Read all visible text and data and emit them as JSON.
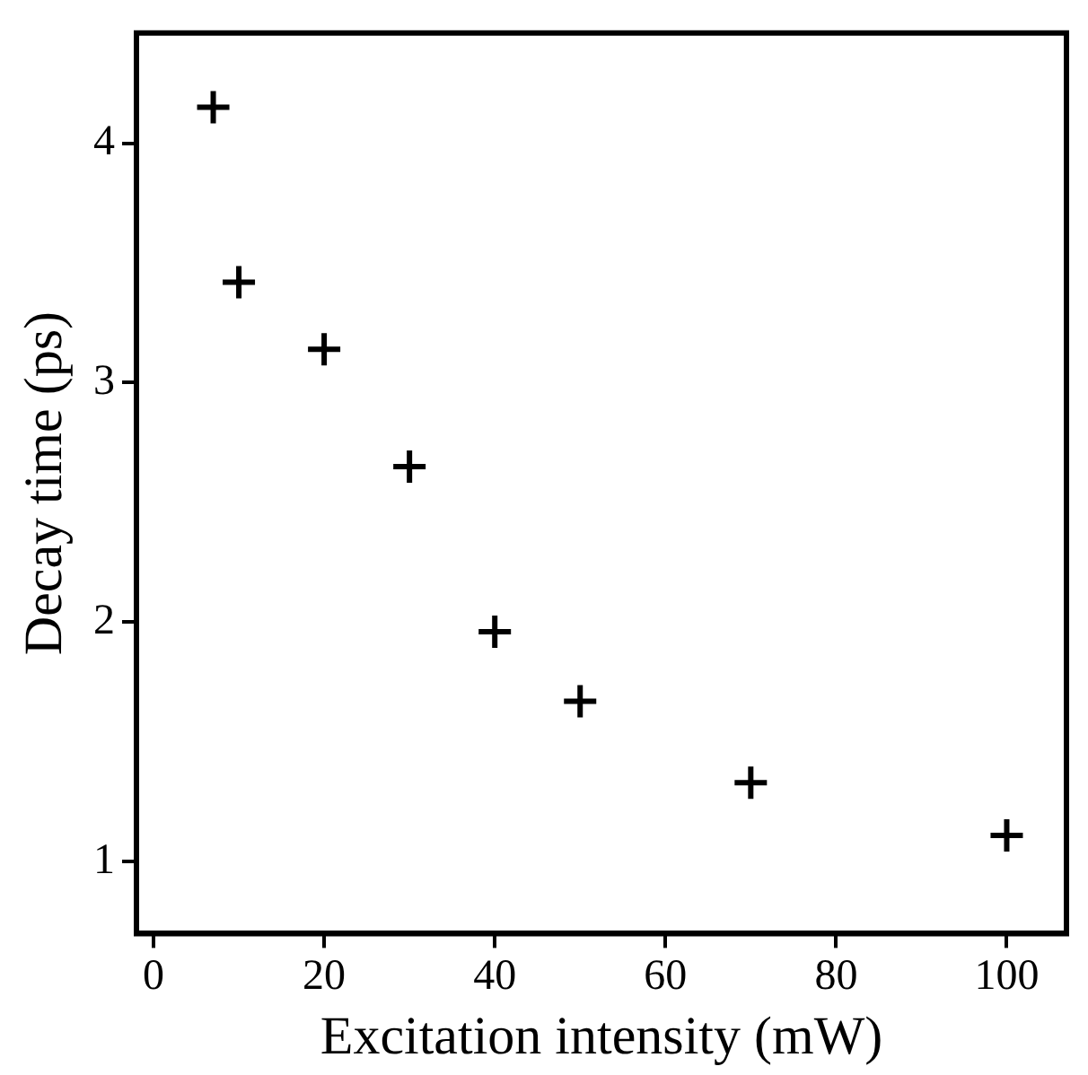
{
  "chart_data": {
    "type": "scatter",
    "xlabel": "Excitation intensity (mW)",
    "ylabel": "Decay time (ps)",
    "x": [
      7,
      10,
      20,
      30,
      40,
      50,
      70,
      100
    ],
    "series": [
      {
        "color": "#000000",
        "values": [
          4.15,
          3.42,
          3.14,
          2.65,
          1.96,
          1.67,
          1.33,
          1.11
        ]
      }
    ],
    "xlim": [
      -2,
      107
    ],
    "xticks": [
      0,
      20,
      40,
      60,
      80,
      100
    ],
    "ylim": [
      0.7,
      4.46
    ],
    "yticks": [
      1,
      2,
      3,
      4
    ],
    "marker": "cross",
    "grid": false,
    "legend": false
  }
}
